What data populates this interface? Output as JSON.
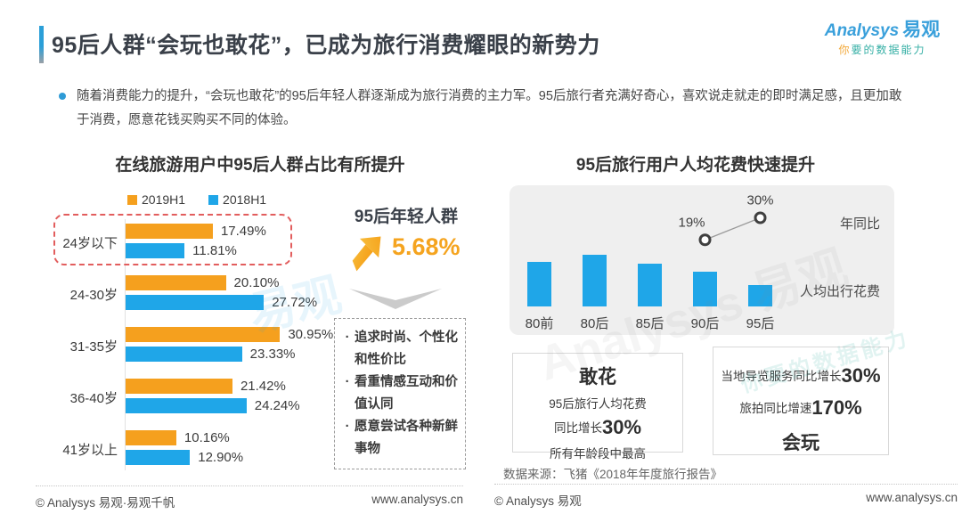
{
  "header": {
    "title": "95后人群“会玩也敢花”，已成为旅行消费耀眼的新势力",
    "logo": {
      "brand_en": "Analysys",
      "brand_cn": "易观",
      "tagline_first": "你",
      "tagline_rest": "要的数据能力"
    }
  },
  "intro": {
    "text": "随着消费能力的提升，“会玩也敢花”的95后年轻人群逐渐成为旅行消费的主力军。95后旅行者充满好奇心，喜欢说走就走的即时满足感，且更加敢于消费，愿意花钱买购买不同的体验。"
  },
  "traits": {
    "items": [
      "追求时尚、个性化和性价比",
      "看重情感互动和价值认同",
      "愿意尝试各种新鲜事物"
    ]
  },
  "boxes": {
    "spend": {
      "title": "敢花",
      "line1": "95后旅行人均花费",
      "line2_prefix": "同比增长",
      "line2_value": "30%",
      "line3": "所有年龄段中最高"
    },
    "play": {
      "line1_prefix": "当地导览服务同比增长",
      "line1_value": "30%",
      "line2_prefix": "旅拍同比增速",
      "line2_value": "170%",
      "title": "会玩"
    }
  },
  "source": "数据来源：飞猪《2018年年度旅行报告》",
  "footer_left": {
    "copyright": "© Analysys 易观·易观千帆",
    "url": "www.analysys.cn"
  },
  "footer_right": {
    "copyright": "© Analysys 易观",
    "url": "www.analysys.cn"
  },
  "watermarks": {
    "cn": "易观",
    "en": "Analysys 易观",
    "tagline": "你要的数据能力"
  },
  "colors": {
    "orange": "#F5A01E",
    "blue": "#1FA6E8",
    "highlight_red": "#E25D5D",
    "panel_gray": "#EFEFEF"
  },
  "chart_data": [
    {
      "type": "bar",
      "orientation": "horizontal",
      "title": "在线旅游用户中95后人群占比有所提升",
      "categories": [
        "24岁以下",
        "24-30岁",
        "31-35岁",
        "36-40岁",
        "41岁以上"
      ],
      "series": [
        {
          "name": "2019H1",
          "color": "#F5A01E",
          "values": [
            17.49,
            20.1,
            30.95,
            21.42,
            10.16
          ]
        },
        {
          "name": "2018H1",
          "color": "#1FA6E8",
          "values": [
            11.81,
            27.72,
            23.33,
            24.24,
            12.9
          ]
        }
      ],
      "value_suffix": "%",
      "xlim": [
        0,
        35
      ],
      "grid": false,
      "legend_position": "top",
      "highlight_category": "24岁以下",
      "annotation": {
        "label": "95后年轻人群",
        "value": "5.68%"
      }
    },
    {
      "type": "bar+line",
      "title": "95后旅行用户人均花费快速提升",
      "categories": [
        "80前",
        "80后",
        "85后",
        "90后",
        "95后"
      ],
      "bar_series": {
        "name": "人均出行花费",
        "color": "#1FA6E8",
        "values_relative": [
          50,
          58,
          48,
          39,
          24
        ]
      },
      "line_series": {
        "name": "年同比",
        "points": [
          {
            "category": "90后",
            "value": 19,
            "label": "19%"
          },
          {
            "category": "95后",
            "value": 30,
            "label": "30%"
          }
        ]
      },
      "grid": false
    }
  ]
}
